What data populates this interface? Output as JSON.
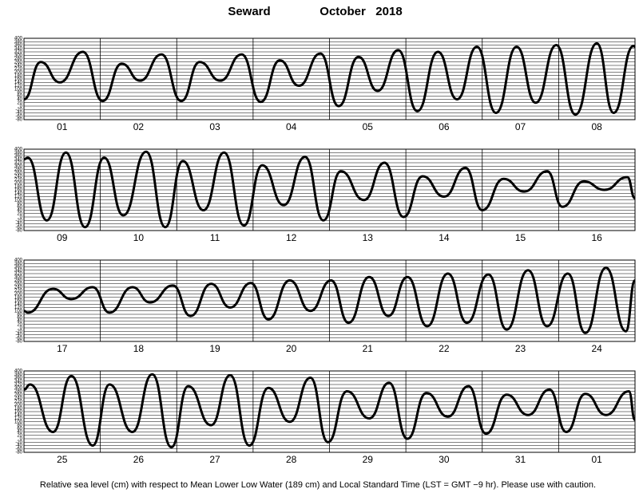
{
  "header": {
    "station": "Seward",
    "month": "October   2018"
  },
  "footer": "Relative sea level (cm) with respect to Mean Lower Low Water (189 cm) and Local Standard Time (LST = GMT −9 hr). Please use with caution.",
  "chart_data": [
    {
      "type": "line",
      "color": "#000000",
      "categories": [
        "01",
        "02",
        "03",
        "04",
        "05",
        "06",
        "07",
        "08"
      ],
      "xlim": [
        0,
        8
      ],
      "ylim": [
        -80,
        400
      ],
      "yticks": [
        -80,
        -60,
        -40,
        -20,
        0,
        20,
        40,
        60,
        80,
        100,
        120,
        140,
        160,
        180,
        200,
        220,
        240,
        260,
        280,
        300,
        320,
        340,
        360,
        380,
        400
      ],
      "grid": true,
      "x": [
        0,
        0.22,
        0.47,
        0.77,
        1.03,
        1.28,
        1.52,
        1.8,
        2.06,
        2.3,
        2.57,
        2.85,
        3.1,
        3.35,
        3.6,
        3.88,
        4.12,
        4.38,
        4.63,
        4.9,
        5.15,
        5.42,
        5.67,
        5.93,
        6.18,
        6.45,
        6.7,
        6.97,
        7.22,
        7.5,
        7.72,
        7.98,
        8
      ],
      "values": [
        40,
        260,
        140,
        320,
        30,
        250,
        150,
        305,
        30,
        260,
        150,
        305,
        25,
        270,
        120,
        310,
        0,
        290,
        90,
        330,
        -30,
        320,
        40,
        350,
        -40,
        350,
        20,
        360,
        -50,
        370,
        -40,
        355,
        350
      ]
    },
    {
      "type": "line",
      "color": "#000000",
      "categories": [
        "09",
        "10",
        "11",
        "12",
        "13",
        "14",
        "15",
        "16"
      ],
      "xlim": [
        0,
        8
      ],
      "ylim": [
        -80,
        400
      ],
      "yticks": [
        -80,
        -60,
        -40,
        -20,
        0,
        20,
        40,
        60,
        80,
        100,
        120,
        140,
        160,
        180,
        200,
        220,
        240,
        260,
        280,
        300,
        320,
        340,
        360,
        380,
        400
      ],
      "grid": true,
      "x": [
        0,
        0.05,
        0.3,
        0.55,
        0.8,
        1.05,
        1.3,
        1.6,
        1.85,
        2.08,
        2.35,
        2.62,
        2.88,
        3.12,
        3.4,
        3.68,
        3.92,
        4.15,
        4.45,
        4.72,
        4.97,
        5.22,
        5.5,
        5.78,
        6.0,
        6.28,
        6.55,
        6.85,
        7.05,
        7.33,
        7.6,
        7.9,
        8
      ],
      "values": [
        340,
        350,
        -20,
        380,
        -60,
        350,
        10,
        385,
        -60,
        330,
        40,
        380,
        -50,
        305,
        70,
        355,
        -20,
        270,
        100,
        320,
        0,
        240,
        120,
        290,
        40,
        225,
        150,
        270,
        60,
        210,
        160,
        235,
        110
      ]
    },
    {
      "type": "line",
      "color": "#000000",
      "categories": [
        "17",
        "18",
        "19",
        "20",
        "21",
        "22",
        "23",
        "24"
      ],
      "xlim": [
        0,
        8
      ],
      "ylim": [
        -80,
        400
      ],
      "yticks": [
        -80,
        -60,
        -40,
        -20,
        0,
        20,
        40,
        60,
        80,
        100,
        120,
        140,
        160,
        180,
        200,
        220,
        240,
        260,
        280,
        300,
        320,
        340,
        360,
        380,
        400
      ],
      "grid": true,
      "x": [
        0,
        0.05,
        0.38,
        0.62,
        0.9,
        1.12,
        1.42,
        1.65,
        1.95,
        2.18,
        2.45,
        2.7,
        2.97,
        3.2,
        3.48,
        3.75,
        4.02,
        4.25,
        4.52,
        4.77,
        5.02,
        5.28,
        5.55,
        5.8,
        6.08,
        6.32,
        6.6,
        6.85,
        7.12,
        7.35,
        7.62,
        7.88,
        8
      ],
      "values": [
        100,
        90,
        230,
        170,
        240,
        90,
        240,
        150,
        250,
        70,
        260,
        120,
        265,
        50,
        280,
        100,
        280,
        30,
        300,
        70,
        300,
        10,
        320,
        30,
        315,
        -10,
        340,
        10,
        320,
        -30,
        355,
        -20,
        280
      ]
    },
    {
      "type": "line",
      "color": "#000000",
      "categories": [
        "25",
        "26",
        "27",
        "28",
        "29",
        "30",
        "31",
        "01"
      ],
      "xlim": [
        0,
        8
      ],
      "ylim": [
        -80,
        400
      ],
      "yticks": [
        -80,
        -60,
        -40,
        -20,
        0,
        20,
        40,
        60,
        80,
        100,
        120,
        140,
        160,
        180,
        200,
        220,
        240,
        260,
        280,
        300,
        320,
        340,
        360,
        380,
        400
      ],
      "grid": true,
      "x": [
        0,
        0.08,
        0.38,
        0.62,
        0.9,
        1.12,
        1.42,
        1.68,
        1.93,
        2.15,
        2.45,
        2.7,
        2.95,
        3.2,
        3.48,
        3.75,
        3.98,
        4.23,
        4.52,
        4.78,
        5.02,
        5.27,
        5.55,
        5.82,
        6.05,
        6.32,
        6.6,
        6.88,
        7.1,
        7.35,
        7.62,
        7.92,
        8
      ],
      "values": [
        290,
        320,
        40,
        370,
        -40,
        320,
        40,
        380,
        -50,
        310,
        80,
        375,
        -40,
        300,
        100,
        360,
        -20,
        280,
        120,
        330,
        0,
        270,
        130,
        310,
        30,
        260,
        140,
        290,
        40,
        265,
        140,
        280,
        110
      ]
    }
  ]
}
